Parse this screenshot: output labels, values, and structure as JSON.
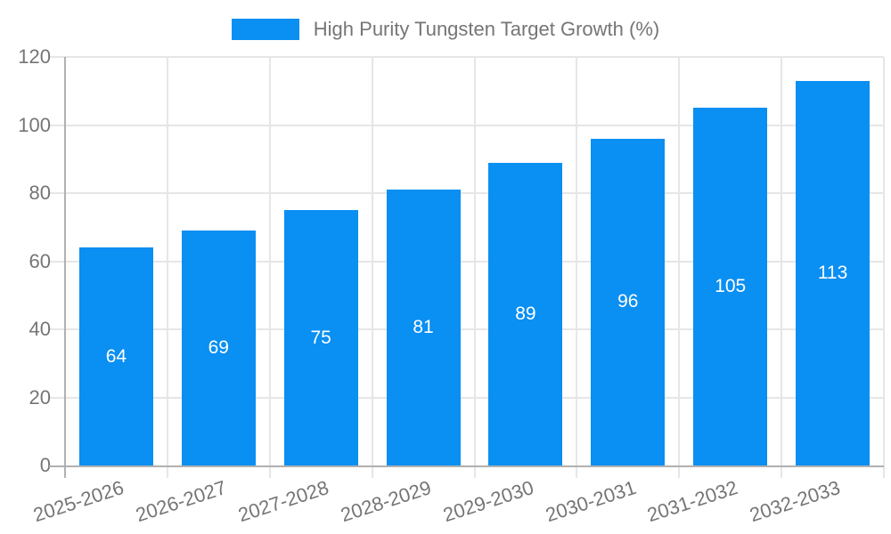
{
  "legend": {
    "label": "High Purity Tungsten Target Growth (%)"
  },
  "chart_data": {
    "type": "bar",
    "title": "",
    "legend_entries": [
      "High Purity Tungsten Target Growth (%)"
    ],
    "legend_position": "top-center",
    "categories": [
      "2025-2026",
      "2026-2027",
      "2027-2028",
      "2028-2029",
      "2029-2030",
      "2030-2031",
      "2031-2032",
      "2032-2033"
    ],
    "series": [
      {
        "name": "High Purity Tungsten Target Growth (%)",
        "values": [
          64,
          69,
          75,
          81,
          89,
          96,
          105,
          113
        ]
      }
    ],
    "values": [
      64,
      69,
      75,
      81,
      89,
      96,
      105,
      113
    ],
    "bar_labels_shown": true,
    "xlabel": "",
    "ylabel": "",
    "ylim": [
      0,
      120
    ],
    "yticks": [
      0,
      20,
      40,
      60,
      80,
      100,
      120
    ],
    "grid": true,
    "xtick_rotation_deg": -18,
    "colors": {
      "bar": "#0a8ff2",
      "bar_value_text": "#ffffff",
      "axis_text": "#757575",
      "axis_line": "#b0b0b0",
      "gridline": "#e6e6e6",
      "background": "#ffffff"
    }
  }
}
